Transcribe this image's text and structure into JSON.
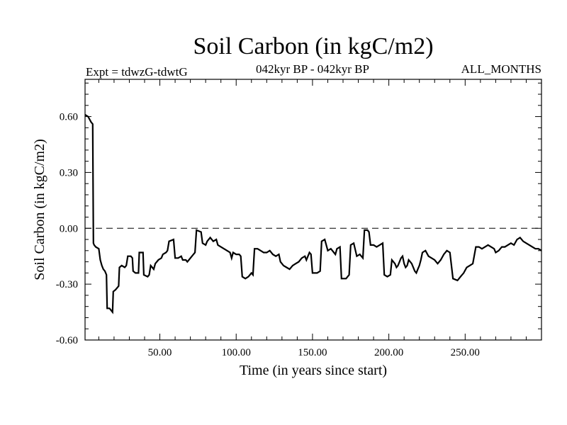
{
  "chart_data": {
    "type": "line",
    "title": "Soil Carbon (in kgC/m2)",
    "subtitle_left": "Expt = tdwzG-tdwtG",
    "subtitle_center": "042kyr BP - 042kyr BP",
    "subtitle_right": "ALL_MONTHS",
    "xlabel": "Time (in years since start)",
    "ylabel": "Soil Carbon (in kgC/m2)",
    "xlim": [
      1,
      300
    ],
    "ylim": [
      -0.6,
      0.8
    ],
    "xticks": [
      50,
      100,
      150,
      200,
      250
    ],
    "xtick_labels": [
      "50.00",
      "100.00",
      "150.00",
      "200.00",
      "250.00"
    ],
    "yticks": [
      -0.6,
      -0.3,
      0.0,
      0.3,
      0.6
    ],
    "ytick_labels": [
      "-0.60",
      "-0.30",
      "0.00",
      "0.30",
      "0.60"
    ],
    "zero_line": "dashed",
    "series": [
      {
        "color": "#000000",
        "points": [
          [
            1,
            0.61
          ],
          [
            3,
            0.6
          ],
          [
            5,
            0.57
          ],
          [
            6,
            0.56
          ],
          [
            6.5,
            -0.08
          ],
          [
            7,
            -0.09
          ],
          [
            8,
            -0.1
          ],
          [
            10,
            -0.11
          ],
          [
            11,
            -0.17
          ],
          [
            12,
            -0.2
          ],
          [
            13,
            -0.22
          ],
          [
            14,
            -0.23
          ],
          [
            15,
            -0.25
          ],
          [
            15.5,
            -0.43
          ],
          [
            17,
            -0.43
          ],
          [
            18,
            -0.44
          ],
          [
            19,
            -0.45
          ],
          [
            19.5,
            -0.34
          ],
          [
            21,
            -0.33
          ],
          [
            23,
            -0.31
          ],
          [
            23.5,
            -0.21
          ],
          [
            25,
            -0.2
          ],
          [
            27,
            -0.21
          ],
          [
            28,
            -0.2
          ],
          [
            29,
            -0.15
          ],
          [
            31,
            -0.15
          ],
          [
            32,
            -0.16
          ],
          [
            32.5,
            -0.23
          ],
          [
            34,
            -0.24
          ],
          [
            36,
            -0.24
          ],
          [
            36.5,
            -0.13
          ],
          [
            39,
            -0.13
          ],
          [
            39.5,
            -0.25
          ],
          [
            42,
            -0.26
          ],
          [
            43,
            -0.25
          ],
          [
            44,
            -0.2
          ],
          [
            45,
            -0.21
          ],
          [
            46,
            -0.22
          ],
          [
            47,
            -0.19
          ],
          [
            49,
            -0.17
          ],
          [
            51,
            -0.16
          ],
          [
            52,
            -0.14
          ],
          [
            54,
            -0.13
          ],
          [
            55,
            -0.12
          ],
          [
            56,
            -0.07
          ],
          [
            59,
            -0.06
          ],
          [
            60,
            -0.16
          ],
          [
            62,
            -0.16
          ],
          [
            64,
            -0.15
          ],
          [
            65,
            -0.17
          ],
          [
            67,
            -0.17
          ],
          [
            68,
            -0.18
          ],
          [
            69,
            -0.17
          ],
          [
            71,
            -0.15
          ],
          [
            73,
            -0.13
          ],
          [
            74,
            -0.01
          ],
          [
            77,
            -0.02
          ],
          [
            78,
            -0.08
          ],
          [
            80,
            -0.09
          ],
          [
            81,
            -0.07
          ],
          [
            83,
            -0.05
          ],
          [
            85,
            -0.07
          ],
          [
            87,
            -0.06
          ],
          [
            88,
            -0.09
          ],
          [
            90,
            -0.1
          ],
          [
            92,
            -0.11
          ],
          [
            94,
            -0.12
          ],
          [
            96,
            -0.13
          ],
          [
            97,
            -0.16
          ],
          [
            98,
            -0.13
          ],
          [
            100,
            -0.14
          ],
          [
            102,
            -0.14
          ],
          [
            103,
            -0.15
          ],
          [
            104,
            -0.26
          ],
          [
            106,
            -0.27
          ],
          [
            108,
            -0.26
          ],
          [
            110,
            -0.24
          ],
          [
            111,
            -0.25
          ],
          [
            112,
            -0.11
          ],
          [
            114,
            -0.11
          ],
          [
            116,
            -0.12
          ],
          [
            118,
            -0.13
          ],
          [
            120,
            -0.13
          ],
          [
            122,
            -0.12
          ],
          [
            124,
            -0.14
          ],
          [
            126,
            -0.15
          ],
          [
            128,
            -0.14
          ],
          [
            129,
            -0.18
          ],
          [
            131,
            -0.2
          ],
          [
            133,
            -0.21
          ],
          [
            135,
            -0.22
          ],
          [
            137,
            -0.2
          ],
          [
            139,
            -0.19
          ],
          [
            141,
            -0.18
          ],
          [
            143,
            -0.16
          ],
          [
            145,
            -0.15
          ],
          [
            146,
            -0.17
          ],
          [
            148,
            -0.13
          ],
          [
            149,
            -0.14
          ],
          [
            150,
            -0.24
          ],
          [
            153,
            -0.24
          ],
          [
            155,
            -0.23
          ],
          [
            156,
            -0.07
          ],
          [
            158,
            -0.06
          ],
          [
            160,
            -0.12
          ],
          [
            162,
            -0.11
          ],
          [
            164,
            -0.13
          ],
          [
            165,
            -0.14
          ],
          [
            166,
            -0.11
          ],
          [
            168,
            -0.1
          ],
          [
            169,
            -0.27
          ],
          [
            172,
            -0.27
          ],
          [
            174,
            -0.25
          ],
          [
            175,
            -0.09
          ],
          [
            177,
            -0.08
          ],
          [
            179,
            -0.15
          ],
          [
            181,
            -0.14
          ],
          [
            183,
            -0.16
          ],
          [
            184,
            -0.01
          ],
          [
            186,
            -0.01
          ],
          [
            187,
            -0.02
          ],
          [
            188,
            -0.09
          ],
          [
            190,
            -0.09
          ],
          [
            192,
            -0.1
          ],
          [
            194,
            -0.09
          ],
          [
            196,
            -0.08
          ],
          [
            197,
            -0.25
          ],
          [
            199,
            -0.26
          ],
          [
            201,
            -0.25
          ],
          [
            202,
            -0.17
          ],
          [
            204,
            -0.19
          ],
          [
            205,
            -0.21
          ],
          [
            206,
            -0.2
          ],
          [
            207,
            -0.18
          ],
          [
            208,
            -0.16
          ],
          [
            209,
            -0.15
          ],
          [
            210,
            -0.19
          ],
          [
            211,
            -0.21
          ],
          [
            212,
            -0.2
          ],
          [
            213,
            -0.17
          ],
          [
            214,
            -0.18
          ],
          [
            215,
            -0.19
          ],
          [
            216,
            -0.21
          ],
          [
            217,
            -0.23
          ],
          [
            218,
            -0.24
          ],
          [
            219,
            -0.22
          ],
          [
            220,
            -0.2
          ],
          [
            221,
            -0.17
          ],
          [
            222,
            -0.13
          ],
          [
            224,
            -0.12
          ],
          [
            226,
            -0.15
          ],
          [
            228,
            -0.16
          ],
          [
            230,
            -0.17
          ],
          [
            232,
            -0.19
          ],
          [
            234,
            -0.17
          ],
          [
            236,
            -0.14
          ],
          [
            238,
            -0.12
          ],
          [
            240,
            -0.13
          ],
          [
            242,
            -0.27
          ],
          [
            245,
            -0.28
          ],
          [
            247,
            -0.26
          ],
          [
            249,
            -0.24
          ],
          [
            251,
            -0.21
          ],
          [
            253,
            -0.2
          ],
          [
            255,
            -0.19
          ],
          [
            257,
            -0.1
          ],
          [
            259,
            -0.1
          ],
          [
            261,
            -0.11
          ],
          [
            263,
            -0.1
          ],
          [
            265,
            -0.09
          ],
          [
            267,
            -0.1
          ],
          [
            269,
            -0.11
          ],
          [
            270,
            -0.13
          ],
          [
            272,
            -0.12
          ],
          [
            274,
            -0.1
          ],
          [
            276,
            -0.1
          ],
          [
            278,
            -0.09
          ],
          [
            280,
            -0.08
          ],
          [
            282,
            -0.09
          ],
          [
            284,
            -0.06
          ],
          [
            286,
            -0.05
          ],
          [
            288,
            -0.07
          ],
          [
            290,
            -0.08
          ],
          [
            292,
            -0.09
          ],
          [
            294,
            -0.1
          ],
          [
            296,
            -0.11
          ],
          [
            298,
            -0.11
          ],
          [
            300,
            -0.12
          ]
        ]
      }
    ]
  }
}
